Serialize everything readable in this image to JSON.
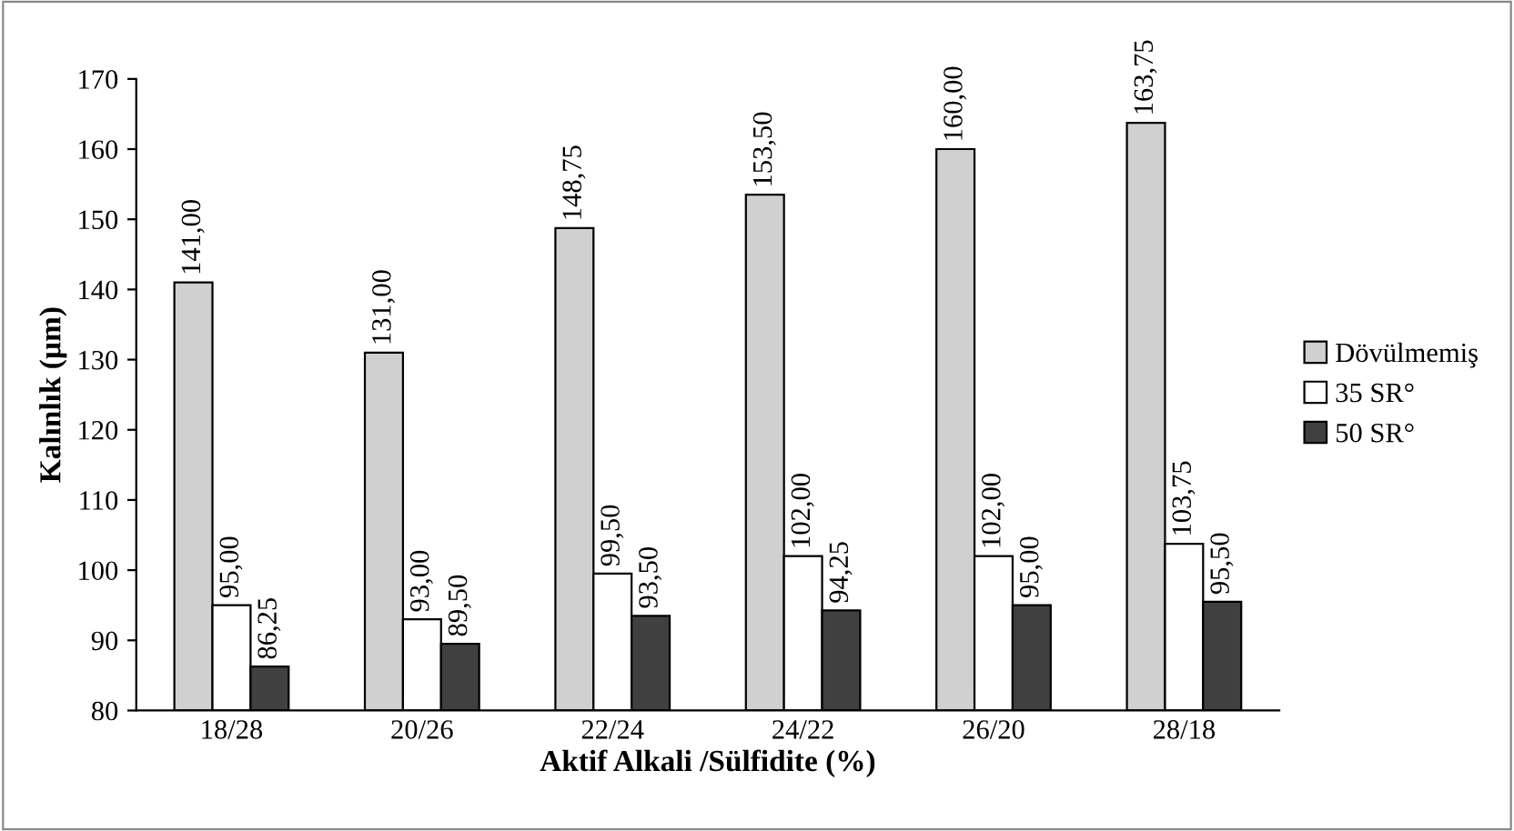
{
  "chart_data": {
    "type": "bar",
    "xlabel": "Aktif Alkali /Sülfidite (%)",
    "ylabel": "Kalınlık (µm)",
    "categories": [
      "18/28",
      "20/26",
      "22/24",
      "24/22",
      "26/20",
      "28/18"
    ],
    "series": [
      {
        "name": "Dövülmemiş",
        "color": "#d0d0d0",
        "values": [
          141.0,
          131.0,
          148.75,
          153.5,
          160.0,
          163.75
        ],
        "value_labels": [
          "141,00",
          "131,00",
          "148,75",
          "153,50",
          "160,00",
          "163,75"
        ]
      },
      {
        "name": "35 SR°",
        "color": "#ffffff",
        "values": [
          95.0,
          93.0,
          99.5,
          102.0,
          102.0,
          103.75
        ],
        "value_labels": [
          "95,00",
          "93,00",
          "99,50",
          "102,00",
          "102,00",
          "103,75"
        ]
      },
      {
        "name": "50 SR°",
        "color": "#404040",
        "values": [
          86.25,
          89.5,
          93.5,
          94.25,
          95.0,
          95.5
        ],
        "value_labels": [
          "86,25",
          "89,50",
          "93,50",
          "94,25",
          "95,00",
          "95,50"
        ]
      }
    ],
    "ylim": [
      80,
      170
    ],
    "yticks": [
      80,
      90,
      100,
      110,
      120,
      130,
      140,
      150,
      160,
      170
    ],
    "grid": false,
    "legend": "right"
  }
}
